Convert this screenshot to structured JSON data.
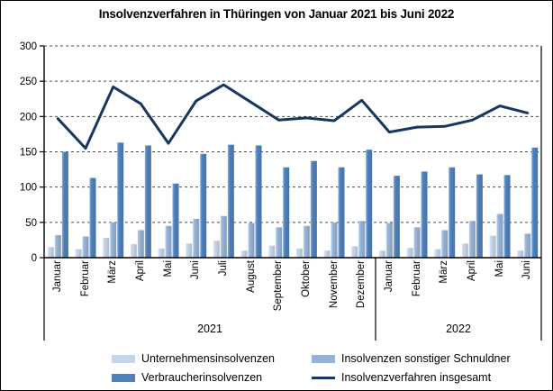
{
  "title": "Insolvenzverfahren in Thüringen von Januar 2021 bis Juni 2022",
  "chart_data": {
    "type": "bar",
    "subtype": "grouped bars with total line overlay",
    "categories": [
      "Januar",
      "Februar",
      "März",
      "April",
      "Mai",
      "Juni",
      "Juli",
      "August",
      "September",
      "Oktober",
      "November",
      "Dezember",
      "Januar",
      "Februar",
      "März",
      "April",
      "Mai",
      "Juni"
    ],
    "year_groups": [
      {
        "label": "2021",
        "months": 12
      },
      {
        "label": "2022",
        "months": 6
      }
    ],
    "series": [
      {
        "name": "Unternehmensinsolvenzen",
        "type": "bar",
        "color": "#c6d4ea",
        "values": [
          15,
          12,
          28,
          19,
          13,
          20,
          24,
          10,
          17,
          13,
          10,
          16,
          10,
          14,
          12,
          20,
          31,
          10
        ]
      },
      {
        "name": "Insolvenzen sonstiger Schnuldner",
        "type": "bar",
        "color": "#95b3d7",
        "values": [
          32,
          30,
          50,
          39,
          45,
          55,
          59,
          49,
          43,
          45,
          50,
          52,
          49,
          43,
          39,
          52,
          62,
          34
        ]
      },
      {
        "name": "Verbraucherinsolvenzen",
        "type": "bar",
        "color": "#4f81bd",
        "values": [
          150,
          113,
          163,
          159,
          105,
          147,
          160,
          159,
          128,
          137,
          128,
          153,
          116,
          122,
          128,
          118,
          117,
          156
        ]
      },
      {
        "name": "Insolvenzverfahren insgesamt",
        "type": "line",
        "color": "#17375e",
        "values": [
          197,
          155,
          242,
          218,
          162,
          222,
          245,
          220,
          195,
          198,
          194,
          223,
          178,
          185,
          186,
          195,
          215,
          205
        ]
      }
    ],
    "ylim": [
      0,
      300
    ],
    "ytick_step": 50,
    "yticks": [
      0,
      50,
      100,
      150,
      200,
      250,
      300
    ],
    "grid": "dashed-horizontal",
    "grid_color": "#4d4d4d",
    "axis_color": "#000000",
    "legend_position": "bottom"
  }
}
